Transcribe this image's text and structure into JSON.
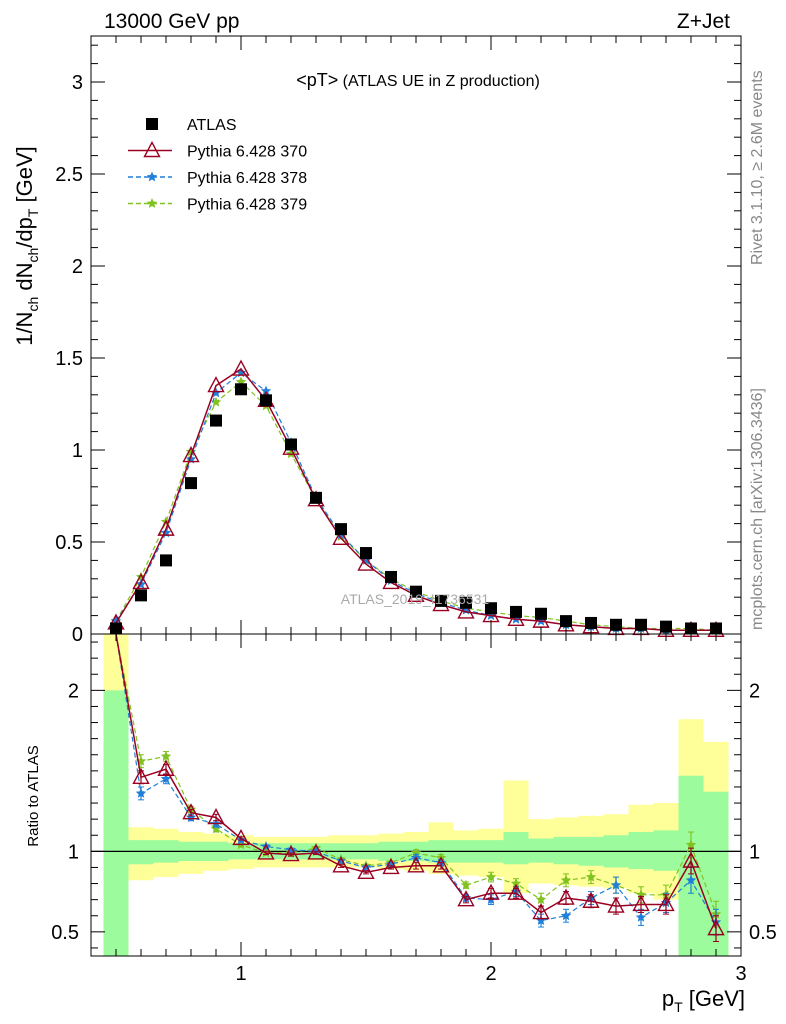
{
  "header": {
    "left": "13000 GeV pp",
    "right": "Z+Jet"
  },
  "side_text": {
    "rivet": "Rivet 3.1.10, ≥ 2.6M events",
    "mcplots": "mcplots.cern.ch [arXiv:1306.3436]"
  },
  "watermark": "ATLAS_2019_I1736531",
  "chart_data": [
    {
      "type": "scatter",
      "title": "<pT> (ATLAS UE in Z production)",
      "title_main": "<pT>",
      "title_sub": " (ATLAS UE in Z production)",
      "xlabel": "p_T [GeV]",
      "ylabel": "1/N_ch dN_ch/dp_T [GeV]",
      "xlim": [
        0.4,
        3.0
      ],
      "ylim": [
        0,
        3.25
      ],
      "x_ticks": [
        1,
        2,
        3
      ],
      "y_ticks": [
        0,
        0.5,
        1,
        1.5,
        2,
        2.5,
        3
      ],
      "x_tick_labels": [
        "1",
        "2",
        "3"
      ],
      "y_tick_labels": [
        "0",
        "0.5",
        "1",
        "1.5",
        "2",
        "2.5",
        "3"
      ],
      "grid": false,
      "legend_position": "top-left",
      "x": [
        0.5,
        0.6,
        0.7,
        0.8,
        0.9,
        1.0,
        1.1,
        1.2,
        1.3,
        1.4,
        1.5,
        1.6,
        1.7,
        1.8,
        1.9,
        2.0,
        2.1,
        2.2,
        2.3,
        2.4,
        2.5,
        2.6,
        2.7,
        2.8,
        2.9
      ],
      "series": [
        {
          "name": "ATLAS",
          "color": "#000000",
          "marker": "square",
          "values": [
            0.03,
            0.21,
            0.4,
            0.82,
            1.16,
            1.33,
            1.27,
            1.03,
            0.74,
            0.57,
            0.44,
            0.31,
            0.23,
            0.18,
            0.17,
            0.14,
            0.12,
            0.11,
            0.07,
            0.06,
            0.05,
            0.05,
            0.04,
            0.03,
            0.03
          ]
        },
        {
          "name": "Pythia 6.428 370",
          "color": "#990022",
          "marker": "triangle",
          "values": [
            0.06,
            0.28,
            0.57,
            0.97,
            1.35,
            1.44,
            1.27,
            1.01,
            0.73,
            0.52,
            0.38,
            0.28,
            0.21,
            0.16,
            0.12,
            0.1,
            0.08,
            0.07,
            0.05,
            0.04,
            0.03,
            0.03,
            0.02,
            0.02,
            0.02
          ]
        },
        {
          "name": "Pythia 6.428 378",
          "color": "#1f7fd9",
          "marker": "star",
          "values": [
            0.07,
            0.27,
            0.55,
            0.95,
            1.31,
            1.42,
            1.32,
            1.04,
            0.74,
            0.54,
            0.4,
            0.29,
            0.22,
            0.17,
            0.13,
            0.1,
            0.08,
            0.07,
            0.05,
            0.04,
            0.03,
            0.03,
            0.02,
            0.02,
            0.02
          ]
        },
        {
          "name": "Pythia 6.428 379",
          "color": "#80c21f",
          "marker": "star",
          "values": [
            0.07,
            0.31,
            0.61,
            0.99,
            1.26,
            1.37,
            1.24,
            0.98,
            0.73,
            0.53,
            0.4,
            0.3,
            0.23,
            0.18,
            0.14,
            0.12,
            0.1,
            0.09,
            0.07,
            0.05,
            0.04,
            0.03,
            0.03,
            0.03,
            0.02
          ]
        }
      ]
    },
    {
      "type": "line",
      "ylabel": "Ratio to ATLAS",
      "xlabel": "p_T [GeV]",
      "xlim": [
        0.4,
        3.0
      ],
      "ylim": [
        0.35,
        2.35
      ],
      "x_ticks": [
        1,
        2,
        3
      ],
      "y_ticks": [
        0.5,
        1,
        2
      ],
      "y_tick_labels": [
        "0.5",
        "1",
        "2"
      ],
      "reference_line": 1,
      "band_edges": [
        0.45,
        0.55,
        0.65,
        0.75,
        0.85,
        0.95,
        1.05,
        1.15,
        1.25,
        1.35,
        1.45,
        1.55,
        1.65,
        1.75,
        1.85,
        1.95,
        2.05,
        2.15,
        2.25,
        2.35,
        2.45,
        2.55,
        2.65,
        2.75,
        2.85,
        2.95
      ],
      "band_inner": {
        "color": "#9cfb9c",
        "lo": [
          0.35,
          0.92,
          0.93,
          0.94,
          0.94,
          0.95,
          0.95,
          0.95,
          0.95,
          0.95,
          0.95,
          0.94,
          0.94,
          0.93,
          0.93,
          0.93,
          0.92,
          0.93,
          0.92,
          0.91,
          0.9,
          0.89,
          0.88,
          0.35,
          0.35
        ],
        "hi": [
          2.0,
          1.07,
          1.07,
          1.06,
          1.06,
          1.05,
          1.05,
          1.05,
          1.05,
          1.05,
          1.05,
          1.06,
          1.06,
          1.07,
          1.07,
          1.07,
          1.12,
          1.08,
          1.09,
          1.09,
          1.1,
          1.12,
          1.13,
          1.47,
          1.37
        ]
      },
      "band_outer": {
        "color": "#ffff99",
        "lo": [
          0.35,
          0.82,
          0.84,
          0.86,
          0.88,
          0.89,
          0.9,
          0.9,
          0.9,
          0.9,
          0.9,
          0.89,
          0.88,
          0.86,
          0.85,
          0.84,
          0.74,
          0.8,
          0.79,
          0.78,
          0.77,
          0.74,
          0.7,
          0.35,
          0.35
        ],
        "hi": [
          2.4,
          1.15,
          1.14,
          1.12,
          1.11,
          1.1,
          1.09,
          1.09,
          1.09,
          1.1,
          1.1,
          1.11,
          1.12,
          1.18,
          1.13,
          1.14,
          1.44,
          1.2,
          1.21,
          1.22,
          1.23,
          1.29,
          1.3,
          1.82,
          1.68
        ]
      },
      "x": [
        0.5,
        0.6,
        0.7,
        0.8,
        0.9,
        1.0,
        1.1,
        1.2,
        1.3,
        1.4,
        1.5,
        1.6,
        1.7,
        1.8,
        1.9,
        2.0,
        2.1,
        2.2,
        2.3,
        2.4,
        2.5,
        2.6,
        2.7,
        2.8,
        2.9
      ],
      "series": [
        {
          "name": "Pythia 6.428 370",
          "color": "#990022",
          "marker": "triangle",
          "dash": false,
          "values": [
            2.4,
            1.46,
            1.51,
            1.24,
            1.21,
            1.08,
            0.99,
            0.98,
            0.99,
            0.91,
            0.87,
            0.9,
            0.91,
            0.91,
            0.7,
            0.74,
            0.74,
            0.62,
            0.71,
            0.69,
            0.66,
            0.67,
            0.67,
            0.94,
            0.52
          ],
          "err": [
            0,
            0.04,
            0.03,
            0.02,
            0.02,
            0.01,
            0.01,
            0.01,
            0.01,
            0.01,
            0.01,
            0.01,
            0.02,
            0.02,
            0.02,
            0.03,
            0.03,
            0.04,
            0.04,
            0.04,
            0.05,
            0.05,
            0.06,
            0.08,
            0.08
          ]
        },
        {
          "name": "Pythia 6.428 378",
          "color": "#1f7fd9",
          "marker": "star",
          "dash": true,
          "values": [
            2.4,
            1.36,
            1.45,
            1.21,
            1.17,
            1.07,
            1.03,
            1.01,
            1.0,
            0.94,
            0.9,
            0.92,
            0.96,
            0.93,
            0.71,
            0.7,
            0.75,
            0.57,
            0.6,
            0.71,
            0.79,
            0.59,
            0.68,
            0.82,
            0.56
          ],
          "err": [
            0,
            0.04,
            0.03,
            0.02,
            0.02,
            0.01,
            0.01,
            0.01,
            0.01,
            0.01,
            0.01,
            0.01,
            0.02,
            0.02,
            0.02,
            0.03,
            0.03,
            0.04,
            0.04,
            0.04,
            0.05,
            0.05,
            0.06,
            0.08,
            0.08
          ]
        },
        {
          "name": "Pythia 6.428 379",
          "color": "#80c21f",
          "marker": "star",
          "dash": true,
          "values": [
            2.4,
            1.56,
            1.59,
            1.26,
            1.14,
            1.04,
            0.99,
            0.99,
            1.02,
            0.95,
            0.91,
            0.93,
            0.99,
            0.96,
            0.79,
            0.84,
            0.8,
            0.7,
            0.82,
            0.84,
            0.79,
            0.73,
            0.73,
            1.04,
            0.61
          ],
          "err": [
            0,
            0.04,
            0.03,
            0.02,
            0.02,
            0.01,
            0.01,
            0.01,
            0.01,
            0.01,
            0.01,
            0.01,
            0.02,
            0.02,
            0.02,
            0.03,
            0.03,
            0.04,
            0.04,
            0.04,
            0.05,
            0.05,
            0.06,
            0.08,
            0.08
          ]
        }
      ]
    }
  ]
}
